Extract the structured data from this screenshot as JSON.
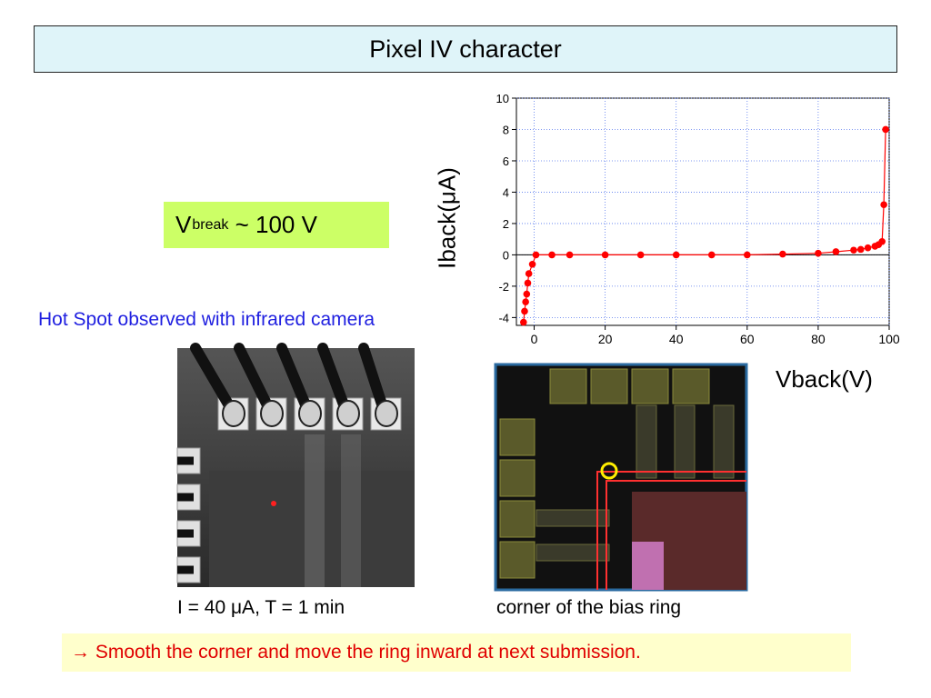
{
  "slide": {
    "title": "Pixel IV character",
    "vbreak": {
      "prefix": "V",
      "subscript": "break",
      "suffix": " ~ 100 V"
    },
    "hotspot_label": "Hot Spot observed with infrared camera",
    "caption_left": "I = 40 μA, T = 1 min",
    "caption_right": "corner of the bias ring",
    "conclusion": "→ Smooth the corner and move the ring inward at next submission."
  },
  "chart_data": {
    "type": "scatter",
    "ylabel": "Iback(μA)",
    "xlabel": "Vback(V)",
    "xlim": [
      -5,
      100
    ],
    "ylim": [
      -4.5,
      10
    ],
    "xticks": [
      0,
      20,
      40,
      60,
      80,
      100
    ],
    "yticks": [
      -4,
      -2,
      0,
      2,
      4,
      6,
      8,
      10
    ],
    "grid": true,
    "series": [
      {
        "color": "#ff0000",
        "x": [
          -1.5,
          -1.8,
          -2.1,
          -2.4,
          -2.7,
          -3.0,
          -0.5,
          0.5,
          5,
          10,
          20,
          30,
          40,
          50,
          60,
          70,
          80,
          85,
          90,
          92,
          94,
          96,
          97,
          98,
          98.5,
          99
        ],
        "y": [
          -1.2,
          -1.8,
          -2.5,
          -3.0,
          -3.6,
          -4.3,
          -0.6,
          0,
          0,
          0,
          0,
          0,
          0,
          0,
          0,
          0.05,
          0.1,
          0.2,
          0.3,
          0.35,
          0.45,
          0.55,
          0.65,
          0.85,
          3.2,
          8.0
        ]
      }
    ]
  },
  "chamber": {
    "colors": {
      "hotspot": "#ff2020",
      "marker": "#ffee00",
      "metal": "#ff3030",
      "accent": "#99cc44"
    }
  }
}
